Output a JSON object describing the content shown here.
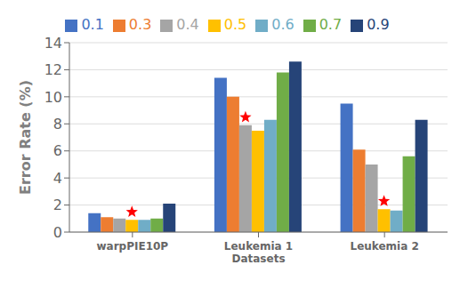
{
  "chart_data": {
    "type": "bar",
    "categories": [
      "warpPIE10P",
      "Leukemia 1\nDatasets",
      "Leukemia 2"
    ],
    "series": [
      {
        "name": "0.1",
        "color": "#4472c4",
        "values": [
          1.4,
          11.4,
          9.5
        ]
      },
      {
        "name": "0.3",
        "color": "#ed7d31",
        "values": [
          1.1,
          10.0,
          6.1
        ]
      },
      {
        "name": "0.4",
        "color": "#a5a5a5",
        "values": [
          1.0,
          7.9,
          5.0
        ]
      },
      {
        "name": "0.5",
        "color": "#ffc000",
        "values": [
          0.9,
          7.5,
          1.7
        ]
      },
      {
        "name": "0.6",
        "color": "#70adc7",
        "values": [
          0.9,
          8.3,
          1.6
        ]
      },
      {
        "name": "0.7",
        "color": "#70ad47",
        "values": [
          1.0,
          11.8,
          5.6
        ]
      },
      {
        "name": "0.9",
        "color": "#264478",
        "values": [
          2.1,
          12.6,
          8.3
        ]
      }
    ],
    "stars": [
      {
        "category": "warpPIE10P",
        "series": "0.5",
        "marker": "star",
        "color": "red"
      },
      {
        "category": "Leukemia 1\nDatasets",
        "series": "0.4",
        "marker": "star",
        "color": "red"
      },
      {
        "category": "Leukemia 2",
        "series": "0.5",
        "marker": "star",
        "color": "red"
      }
    ],
    "ylabel": "Error Rate (%)",
    "ylim": [
      0,
      14
    ],
    "yticks": [
      0,
      2,
      4,
      6,
      8,
      10,
      12,
      14
    ],
    "grid": true,
    "legend": "top"
  }
}
